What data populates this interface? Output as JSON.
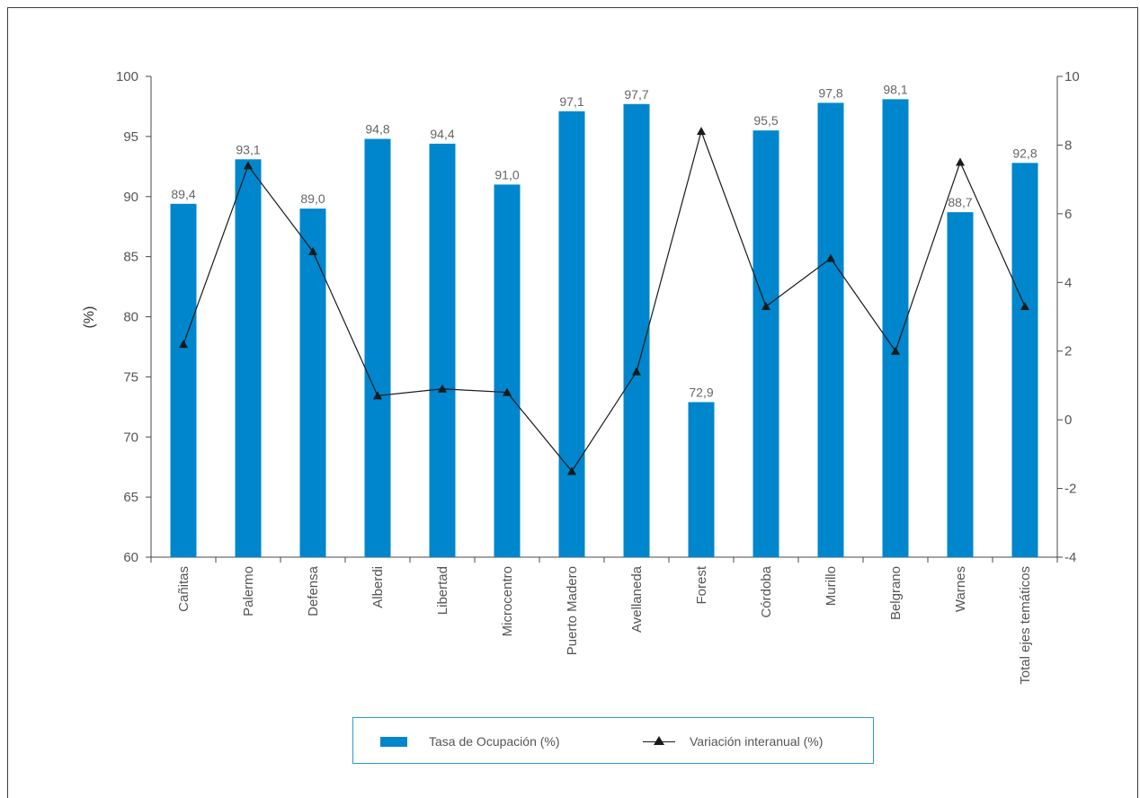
{
  "chart_data": {
    "type": "bar",
    "categories": [
      "Cañitas",
      "Palermo",
      "Defensa",
      "Alberdi",
      "Libertad",
      "Microcentro",
      "Puerto Madero",
      "Avellaneda",
      "Forest",
      "Córdoba",
      "Murillo",
      "Belgrano",
      "Warnes",
      "Total ejes temáticos"
    ],
    "series": [
      {
        "name": "Tasa de Ocupación (%)",
        "type": "bar",
        "axis": "left",
        "color": "#0086cc",
        "values": [
          89.4,
          93.1,
          89.0,
          94.8,
          94.4,
          91.0,
          97.1,
          97.7,
          72.9,
          95.5,
          97.8,
          98.1,
          88.7,
          92.8
        ],
        "labels": [
          "89,4",
          "93,1",
          "89,0",
          "94,8",
          "94,4",
          "91,0",
          "97,1",
          "97,7",
          "72,9",
          "95,5",
          "97,8",
          "98,1",
          "88,7",
          "92,8"
        ]
      },
      {
        "name": "Variación interanual (%)",
        "type": "line",
        "axis": "right",
        "color": "#1a1a1a",
        "marker": "triangle",
        "values": [
          2.2,
          7.4,
          4.9,
          0.7,
          0.9,
          0.8,
          -1.5,
          1.4,
          8.4,
          3.3,
          4.7,
          2.0,
          7.5,
          3.3
        ]
      }
    ],
    "ylabel": "(%)",
    "ylim": [
      60,
      100
    ],
    "yticks": [
      "60",
      "65",
      "70",
      "75",
      "80",
      "85",
      "90",
      "95",
      "100"
    ],
    "y2lim": [
      -4,
      10
    ],
    "y2ticks": [
      "-4",
      "-2",
      "0",
      "2",
      "4",
      "6",
      "8",
      "10"
    ],
    "grid": false,
    "legend": "bottom"
  }
}
